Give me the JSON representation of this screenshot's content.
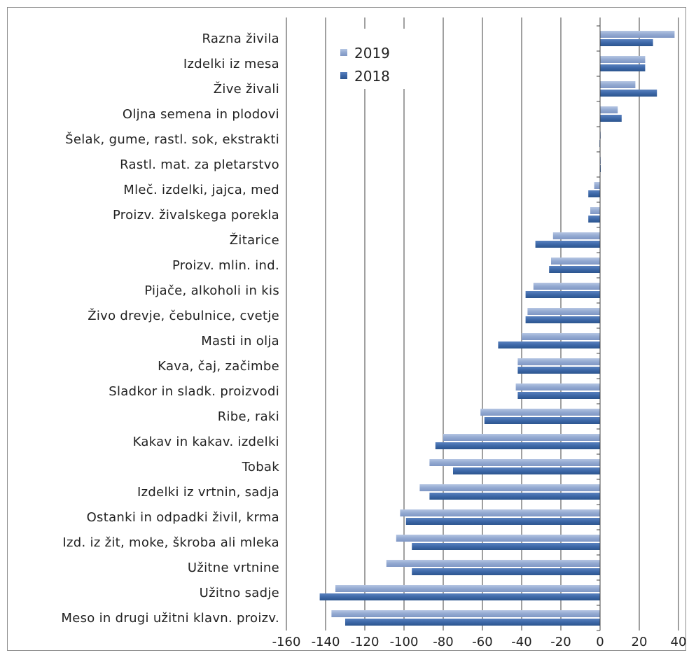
{
  "chart_data": {
    "type": "bar",
    "orientation": "horizontal",
    "categories": [
      "Razna živila",
      "Izdelki iz mesa",
      "Žive živali",
      "Oljna semena in plodovi",
      "Šelak, gume, rastl. sok, ekstrakti",
      "Rastl. mat. za pletarstvo",
      "Mleč. izdelki, jajca, med",
      "Proizv. živalskega porekla",
      "Žitarice",
      "Proizv. mlin. ind.",
      "Pijače, alkoholi in kis",
      "Živo drevje, čebulnice, cvetje",
      "Masti in olja",
      "Kava, čaj, začimbe",
      "Sladkor in sladk. proizvodi",
      "Ribe, raki",
      "Kakav in kakav. izdelki",
      "Tobak",
      "Izdelki iz vrtnin, sadja",
      "Ostanki in odpadki živil, krma",
      "Izd. iz žit, moke, škroba ali mleka",
      "Užitne vrtnine",
      "Užitno sadje",
      "Meso in drugi užitni klavn. proizv."
    ],
    "series": [
      {
        "name": "2019",
        "color": "#93a9d1",
        "values": [
          38,
          23,
          18,
          9,
          0.3,
          0.3,
          -3,
          -5,
          -24,
          -25,
          -34,
          -37,
          -40,
          -42,
          -43,
          -61,
          -80,
          -87,
          -92,
          -102,
          -104,
          -109,
          -135,
          -137
        ]
      },
      {
        "name": "2018",
        "color": "#3d68a8",
        "values": [
          27,
          23,
          29,
          11,
          -0.3,
          0.3,
          -6,
          -6,
          -33,
          -26,
          -38,
          -38,
          -52,
          -42,
          -42,
          -59,
          -84,
          -75,
          -87,
          -99,
          -96,
          -96,
          -143,
          -130
        ]
      }
    ],
    "xlim": [
      -160,
      40
    ],
    "xticks": [
      "-160",
      "-140",
      "-120",
      "-100",
      "-80",
      "-60",
      "-40",
      "-20",
      "0",
      "20",
      "40"
    ],
    "xtick_values": [
      -160,
      -140,
      -120,
      -100,
      -80,
      -60,
      -40,
      -20,
      0,
      20,
      40
    ],
    "grid": true,
    "legend": {
      "placement": "top-left of plot",
      "entries": [
        "2019",
        "2018"
      ]
    }
  }
}
